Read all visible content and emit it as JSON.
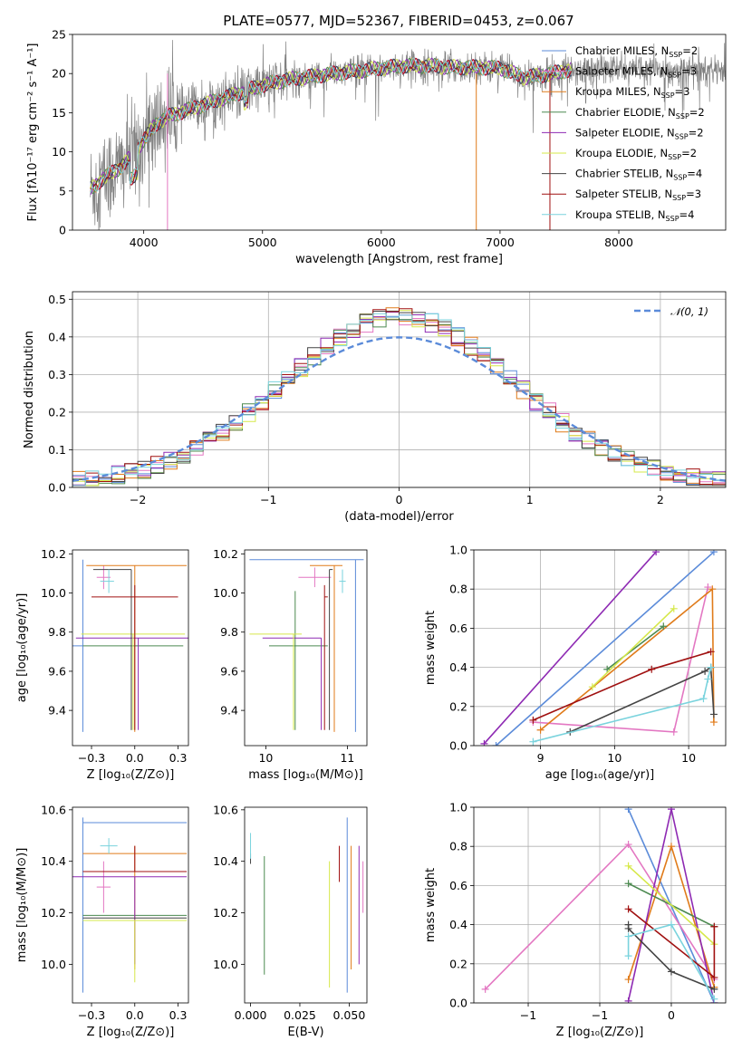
{
  "figure": {
    "title": "PLATE=0577, MJD=52367, FIBERID=0453, z=0.067"
  },
  "colors": {
    "observed": "#808080",
    "Chabrier MILES": "#5b8bd9",
    "Salpeter MILES": "#e377c2",
    "Kroupa MILES": "#e07b1a",
    "Chabrier ELODIE": "#4c8a50",
    "Salpeter ELODIE": "#8e2ab3",
    "Kroupa ELODIE": "#d6e84a",
    "Chabrier STELIB": "#444444",
    "Salpeter STELIB": "#a01010",
    "Kroupa STELIB": "#7ad3dd",
    "normal": "#5b8bd9"
  },
  "chart_data": [
    {
      "id": "spectrum",
      "type": "line",
      "title": "PLATE=0577, MJD=52367, FIBERID=0453, z=0.067",
      "xlabel": "wavelength [Angstrom, rest frame]",
      "ylabel": "Flux [fλ10⁻¹⁷ erg cm⁻² s⁻¹ A⁻¹]",
      "xlim": [
        3400,
        8900
      ],
      "ylim": [
        0,
        25
      ],
      "xticks": [
        4000,
        5000,
        6000,
        7000,
        8000
      ],
      "yticks": [
        0,
        5,
        10,
        15,
        20,
        25
      ],
      "grid": false,
      "legend_position": "right",
      "legend": [
        {
          "label": "Chabrier MILES, N",
          "sub": "SSP",
          "suffix": "=2"
        },
        {
          "label": "Salpeter MILES, N",
          "sub": "SSP",
          "suffix": "=3"
        },
        {
          "label": "Kroupa MILES, N",
          "sub": "SSP",
          "suffix": "=3"
        },
        {
          "label": "Chabrier ELODIE, N",
          "sub": "SSP",
          "suffix": "=2"
        },
        {
          "label": "Salpeter ELODIE, N",
          "sub": "SSP",
          "suffix": "=2"
        },
        {
          "label": "Kroupa ELODIE, N",
          "sub": "SSP",
          "suffix": "=2"
        },
        {
          "label": "Chabrier STELIB, N",
          "sub": "SSP",
          "suffix": "=4"
        },
        {
          "label": "Salpeter STELIB, N",
          "sub": "SSP",
          "suffix": "=3"
        },
        {
          "label": "Kroupa STELIB, N",
          "sub": "SSP",
          "suffix": "=4"
        }
      ],
      "continuum": [
        [
          3550,
          5.2
        ],
        [
          3650,
          6.5
        ],
        [
          3800,
          8
        ],
        [
          3900,
          9.5
        ],
        [
          4000,
          11.5
        ],
        [
          4100,
          13.5
        ],
        [
          4200,
          14.5
        ],
        [
          4400,
          15.5
        ],
        [
          4600,
          16.5
        ],
        [
          4800,
          17.5
        ],
        [
          5000,
          18.5
        ],
        [
          5200,
          19.2
        ],
        [
          5400,
          19.6
        ],
        [
          5600,
          20
        ],
        [
          5800,
          20.3
        ],
        [
          6000,
          20.7
        ],
        [
          6200,
          21
        ],
        [
          6400,
          21
        ],
        [
          6600,
          20.8
        ],
        [
          6800,
          20.8
        ],
        [
          7000,
          20.7
        ],
        [
          7200,
          19.5
        ],
        [
          7400,
          19.9
        ],
        [
          7600,
          20.5
        ]
      ],
      "observed_range": [
        3550,
        8900
      ],
      "model_range": [
        3550,
        7600
      ]
    },
    {
      "id": "residuals",
      "type": "histogram",
      "xlabel": "(data-model)/error",
      "ylabel": "Normed distribution",
      "xlim": [
        -2.5,
        2.5
      ],
      "ylim": [
        0,
        0.52
      ],
      "xticks": [
        -2,
        -1,
        0,
        1,
        2
      ],
      "yticks": [
        0.0,
        0.1,
        0.2,
        0.3,
        0.4,
        0.5
      ],
      "grid": true,
      "legend_position": "top-right",
      "legend": [
        {
          "label": "𝒩(0, 1)",
          "style": "dashed"
        }
      ],
      "bin_width": 0.1,
      "bin_start": -2.5
    },
    {
      "id": "age-vs-z",
      "type": "scatter",
      "xlabel": "Z [log₁₀(Z/Z⊙)]",
      "ylabel": "age  [log₁₀(age/yr)]",
      "xlim": [
        -0.36,
        0.31
      ],
      "ylim": [
        9.22,
        10.22
      ],
      "xticks": [
        -0.25,
        0.0,
        0.25
      ],
      "yticks": [
        9.4,
        9.6,
        9.8,
        10.0,
        10.2
      ],
      "grid": false,
      "series": [
        {
          "name": "Chabrier MILES",
          "x": -0.3,
          "xerr": [
            0.35,
            0.0
          ],
          "y": 9.73,
          "yerr": [
            0.44,
            0.44
          ]
        },
        {
          "name": "Salpeter MILES",
          "x": -0.18,
          "xerr": [
            0.04,
            0.04
          ],
          "y": 10.08,
          "yerr": [
            0.06,
            0.06
          ]
        },
        {
          "name": "Kroupa MILES",
          "x": 0.0,
          "xerr": [
            0.28,
            0.3
          ],
          "y": 10.14,
          "yerr": [
            0.85,
            0.0
          ]
        },
        {
          "name": "Chabrier ELODIE",
          "x": -0.02,
          "xerr": [
            0.28,
            0.3
          ],
          "y": 9.73,
          "yerr": [
            0.43,
            0.0
          ]
        },
        {
          "name": "Salpeter ELODIE",
          "x": 0.02,
          "xerr": [
            0.36,
            0.3
          ],
          "y": 9.77,
          "yerr": [
            0.47,
            0.0
          ]
        },
        {
          "name": "Kroupa ELODIE",
          "x": -0.01,
          "xerr": [
            0.3,
            0.3
          ],
          "y": 9.79,
          "yerr": [
            0.49,
            0.0
          ]
        },
        {
          "name": "Chabrier STELIB",
          "x": -0.02,
          "xerr": [
            0.22,
            0.0
          ],
          "y": 10.12,
          "yerr": [
            0.82,
            0.0
          ]
        },
        {
          "name": "Salpeter STELIB",
          "x": 0.0,
          "xerr": [
            0.25,
            0.25
          ],
          "y": 9.98,
          "yerr": [
            0.68,
            0.06
          ]
        },
        {
          "name": "Kroupa STELIB",
          "x": -0.15,
          "xerr": [
            0.05,
            0.03
          ],
          "y": 10.06,
          "yerr": [
            0.06,
            0.06
          ]
        }
      ]
    },
    {
      "id": "age-vs-mass",
      "type": "scatter",
      "xlabel": "mass [log₁₀(M/M⊙)]",
      "ylabel": "",
      "xlim": [
        9.87,
        10.62
      ],
      "ylim": [
        9.22,
        10.22
      ],
      "xticks": [
        10.0,
        10.5
      ],
      "yticks": [
        9.4,
        9.6,
        9.8,
        10.0,
        10.2
      ],
      "grid": false,
      "series": [
        {
          "name": "Chabrier MILES",
          "x": 10.55,
          "xerr": [
            0.65,
            0.05
          ],
          "y": 10.17,
          "yerr": [
            0.88,
            0.0
          ]
        },
        {
          "name": "Salpeter MILES",
          "x": 10.3,
          "xerr": [
            0.1,
            0.1
          ],
          "y": 10.08,
          "yerr": [
            0.05,
            0.05
          ]
        },
        {
          "name": "Kroupa MILES",
          "x": 10.42,
          "xerr": [
            0.15,
            0.05
          ],
          "y": 10.14,
          "yerr": [
            0.85,
            0.0
          ]
        },
        {
          "name": "Chabrier ELODIE",
          "x": 10.18,
          "xerr": [
            0.16,
            0.2
          ],
          "y": 9.73,
          "yerr": [
            0.43,
            0.28
          ]
        },
        {
          "name": "Salpeter ELODIE",
          "x": 10.34,
          "xerr": [
            0.36,
            0.0
          ],
          "y": 9.77,
          "yerr": [
            0.47,
            0.0
          ]
        },
        {
          "name": "Kroupa ELODIE",
          "x": 10.17,
          "xerr": [
            0.27,
            0.05
          ],
          "y": 9.79,
          "yerr": [
            0.49,
            0.0
          ]
        },
        {
          "name": "Chabrier STELIB",
          "x": 10.39,
          "xerr": [
            0.0,
            0.02
          ],
          "y": 10.12,
          "yerr": [
            0.82,
            0.0
          ]
        },
        {
          "name": "Salpeter STELIB",
          "x": 10.36,
          "xerr": [
            0.0,
            0.02
          ],
          "y": 9.98,
          "yerr": [
            0.68,
            0.06
          ]
        },
        {
          "name": "Kroupa STELIB",
          "x": 10.47,
          "xerr": [
            0.02,
            0.02
          ],
          "y": 10.06,
          "yerr": [
            0.06,
            0.06
          ]
        }
      ]
    },
    {
      "id": "weight-vs-age",
      "type": "line",
      "xlabel": "age  [log₁₀(age/yr)]",
      "ylabel": "mass weight",
      "xlim": [
        8.55,
        10.25
      ],
      "ylim": [
        0.0,
        1.0
      ],
      "xticks": [
        9.0,
        9.5,
        10.0
      ],
      "yticks": [
        0.0,
        0.2,
        0.4,
        0.6,
        0.8,
        1.0
      ],
      "grid": true,
      "series": [
        {
          "name": "Chabrier MILES",
          "x": [
            8.7,
            10.17
          ],
          "y": [
            0.0,
            0.99
          ]
        },
        {
          "name": "Salpeter MILES",
          "x": [
            8.95,
            9.9,
            10.13
          ],
          "y": [
            0.12,
            0.07,
            0.81
          ]
        },
        {
          "name": "Kroupa MILES",
          "x": [
            9.0,
            10.16,
            10.17
          ],
          "y": [
            0.08,
            0.8,
            0.12
          ]
        },
        {
          "name": "Chabrier ELODIE",
          "x": [
            9.45,
            9.83
          ],
          "y": [
            0.39,
            0.61
          ]
        },
        {
          "name": "Salpeter ELODIE",
          "x": [
            8.62,
            9.78
          ],
          "y": [
            0.01,
            0.99
          ]
        },
        {
          "name": "Kroupa ELODIE",
          "x": [
            9.35,
            9.9
          ],
          "y": [
            0.3,
            0.7
          ]
        },
        {
          "name": "Chabrier STELIB",
          "x": [
            9.2,
            10.11,
            10.15,
            10.17
          ],
          "y": [
            0.07,
            0.38,
            0.4,
            0.16
          ]
        },
        {
          "name": "Salpeter STELIB",
          "x": [
            8.95,
            9.75,
            10.15
          ],
          "y": [
            0.13,
            0.39,
            0.48
          ]
        },
        {
          "name": "Kroupa STELIB",
          "x": [
            8.95,
            10.1,
            10.13,
            10.15
          ],
          "y": [
            0.02,
            0.24,
            0.34,
            0.4
          ]
        }
      ]
    },
    {
      "id": "mass-vs-z",
      "type": "scatter",
      "xlabel": "Z [log₁₀(Z/Z⊙)]",
      "ylabel": "mass [log₁₀(M/M⊙)]",
      "xlim": [
        -0.36,
        0.31
      ],
      "ylim": [
        9.85,
        10.61
      ],
      "xticks": [
        -0.25,
        0.0,
        0.25
      ],
      "yticks": [
        10.0,
        10.2,
        10.4,
        10.6
      ],
      "grid": false,
      "series": [
        {
          "name": "Chabrier MILES",
          "x": -0.3,
          "xerr": [
            0.0,
            0.6
          ],
          "y": 10.55,
          "yerr": [
            0.66,
            0.02
          ]
        },
        {
          "name": "Salpeter MILES",
          "x": -0.18,
          "xerr": [
            0.04,
            0.04
          ],
          "y": 10.3,
          "yerr": [
            0.1,
            0.1
          ]
        },
        {
          "name": "Kroupa MILES",
          "x": 0.0,
          "xerr": [
            0.3,
            0.3
          ],
          "y": 10.43,
          "yerr": [
            0.45,
            0.03
          ]
        },
        {
          "name": "Chabrier ELODIE",
          "x": 0.0,
          "xerr": [
            0.3,
            0.3
          ],
          "y": 10.19,
          "yerr": [
            0.0,
            0.0
          ]
        },
        {
          "name": "Salpeter ELODIE",
          "x": 0.0,
          "xerr": [
            0.36,
            0.3
          ],
          "y": 10.34,
          "yerr": [
            0.34,
            0.0
          ]
        },
        {
          "name": "Kroupa ELODIE",
          "x": 0.0,
          "xerr": [
            0.3,
            0.3
          ],
          "y": 10.17,
          "yerr": [
            0.24,
            0.0
          ]
        },
        {
          "name": "Chabrier STELIB",
          "x": 0.0,
          "xerr": [
            0.3,
            0.3
          ],
          "y": 10.18,
          "yerr": [
            0.0,
            0.0
          ]
        },
        {
          "name": "Salpeter STELIB",
          "x": 0.0,
          "xerr": [
            0.3,
            0.3
          ],
          "y": 10.36,
          "yerr": [
            0.0,
            0.1
          ]
        },
        {
          "name": "Kroupa STELIB",
          "x": -0.15,
          "xerr": [
            0.05,
            0.05
          ],
          "y": 10.46,
          "yerr": [
            0.03,
            0.03
          ]
        }
      ]
    },
    {
      "id": "mass-vs-ebv",
      "type": "scatter",
      "xlabel": "E(B-V)",
      "ylabel": "",
      "xlim": [
        -0.003,
        0.059
      ],
      "ylim": [
        9.85,
        10.61
      ],
      "xticks": [
        0.0,
        0.025,
        0.05
      ],
      "yticks": [
        10.0,
        10.2,
        10.4,
        10.6
      ],
      "grid": false,
      "series": [
        {
          "name": "Chabrier MILES",
          "x": 0.049,
          "y": 10.55,
          "yerr": [
            0.66,
            0.02
          ]
        },
        {
          "name": "Salpeter MILES",
          "x": 0.057,
          "y": 10.3,
          "yerr": [
            0.1,
            0.1
          ]
        },
        {
          "name": "Kroupa MILES",
          "x": 0.051,
          "y": 10.43,
          "yerr": [
            0.45,
            0.03
          ]
        },
        {
          "name": "Chabrier ELODIE",
          "x": 0.007,
          "y": 10.19,
          "yerr": [
            0.23,
            0.23
          ]
        },
        {
          "name": "Salpeter ELODIE",
          "x": 0.055,
          "y": 10.34,
          "yerr": [
            0.34,
            0.12
          ]
        },
        {
          "name": "Kroupa ELODIE",
          "x": 0.04,
          "y": 10.17,
          "yerr": [
            0.26,
            0.23
          ]
        },
        {
          "name": "Chabrier STELIB",
          "x": 0.0,
          "y": 10.41,
          "yerr": [
            0.02,
            0.02
          ]
        },
        {
          "name": "Salpeter STELIB",
          "x": 0.045,
          "y": 10.36,
          "yerr": [
            0.04,
            0.1
          ]
        },
        {
          "name": "Kroupa STELIB",
          "x": 0.0,
          "y": 10.46,
          "yerr": [
            0.05,
            0.05
          ]
        }
      ]
    },
    {
      "id": "weight-vs-z",
      "type": "line",
      "xlabel": "Z [log₁₀(Z/Z⊙)]",
      "ylabel": "mass weight",
      "xlim": [
        -1.38,
        0.38
      ],
      "ylim": [
        0.0,
        1.0
      ],
      "xticks": [
        -1.0,
        -0.5,
        0.0
      ],
      "yticks": [
        0.0,
        0.2,
        0.4,
        0.6,
        0.8,
        1.0
      ],
      "grid": true,
      "series": [
        {
          "name": "Chabrier MILES",
          "x": [
            -0.3,
            0.3
          ],
          "y": [
            0.99,
            0.0
          ]
        },
        {
          "name": "Salpeter MILES",
          "x": [
            -1.3,
            -0.3,
            0.3
          ],
          "y": [
            0.07,
            0.81,
            0.12
          ]
        },
        {
          "name": "Kroupa MILES",
          "x": [
            -0.3,
            0.0,
            0.3
          ],
          "y": [
            0.12,
            0.8,
            0.08
          ]
        },
        {
          "name": "Chabrier ELODIE",
          "x": [
            -0.3,
            0.3
          ],
          "y": [
            0.61,
            0.39
          ]
        },
        {
          "name": "Salpeter ELODIE",
          "x": [
            -0.3,
            0.0,
            0.3
          ],
          "y": [
            0.01,
            0.99,
            0.0
          ]
        },
        {
          "name": "Kroupa ELODIE",
          "x": [
            -0.3,
            0.3
          ],
          "y": [
            0.7,
            0.3
          ]
        },
        {
          "name": "Chabrier STELIB",
          "x": [
            -0.3,
            -0.3,
            0.0,
            0.3
          ],
          "y": [
            0.4,
            0.38,
            0.16,
            0.07
          ]
        },
        {
          "name": "Salpeter STELIB",
          "x": [
            -0.3,
            0.3,
            0.3
          ],
          "y": [
            0.48,
            0.13,
            0.39
          ]
        },
        {
          "name": "Kroupa STELIB",
          "x": [
            -0.3,
            -0.3,
            0.0,
            0.3
          ],
          "y": [
            0.24,
            0.34,
            0.4,
            0.02
          ]
        }
      ]
    }
  ]
}
